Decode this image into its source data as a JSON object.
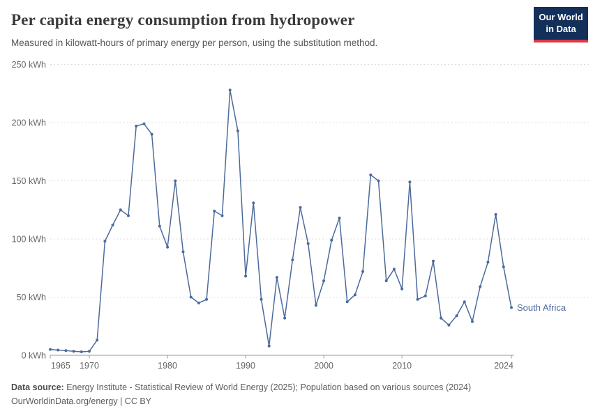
{
  "header": {
    "title": "Per capita energy consumption from hydropower",
    "subtitle": "Measured in kilowatt-hours of primary energy per person, using the substitution method.",
    "logo": {
      "line1": "Our World",
      "line2": "in Data"
    }
  },
  "chart_data": {
    "type": "line",
    "title": "Per capita energy consumption from hydropower",
    "ylabel": "kWh",
    "xlabel": "",
    "xlim": [
      1965,
      2024
    ],
    "ylim": [
      0,
      250
    ],
    "grid": "horizontal-dashed",
    "legend_position": "end-of-line",
    "x_ticks": [
      1965,
      1970,
      1980,
      1990,
      2000,
      2010,
      2024
    ],
    "y_ticks": [
      0,
      50,
      100,
      150,
      200,
      250
    ],
    "y_tick_suffix": " kWh",
    "series": [
      {
        "name": "South Africa",
        "color": "#4c6a9c",
        "x": [
          1965,
          1966,
          1967,
          1968,
          1969,
          1970,
          1971,
          1972,
          1973,
          1974,
          1975,
          1976,
          1977,
          1978,
          1979,
          1980,
          1981,
          1982,
          1983,
          1984,
          1985,
          1986,
          1987,
          1988,
          1989,
          1990,
          1991,
          1992,
          1993,
          1994,
          1995,
          1996,
          1997,
          1998,
          1999,
          2000,
          2001,
          2002,
          2003,
          2004,
          2005,
          2006,
          2007,
          2008,
          2009,
          2010,
          2011,
          2012,
          2013,
          2014,
          2015,
          2016,
          2017,
          2018,
          2019,
          2020,
          2021,
          2022,
          2023,
          2024
        ],
        "values": [
          5,
          4.5,
          4,
          3.5,
          3,
          3.5,
          13,
          98,
          112,
          125,
          120,
          197,
          199,
          190,
          111,
          93,
          150,
          89,
          50,
          45,
          48,
          124,
          120,
          228,
          193,
          68,
          131,
          48,
          8,
          67,
          32,
          82,
          127,
          96,
          43,
          64,
          99,
          118,
          46,
          52,
          72,
          155,
          150,
          64,
          74,
          57,
          149,
          48,
          51,
          81,
          32,
          26,
          34,
          46,
          29,
          59,
          80,
          121,
          76,
          41
        ]
      }
    ]
  },
  "footer": {
    "source_label": "Data source:",
    "source_text": " Energy Institute - Statistical Review of World Energy (2025); Population based on various sources (2024)",
    "link_line": "OurWorldinData.org/energy | CC BY"
  },
  "colors": {
    "line": "#4c6a9c",
    "grid": "#dddddd",
    "axis": "#999999",
    "tick_text": "#666666",
    "logo_bg": "#13305b",
    "logo_red": "#d93a4a"
  }
}
